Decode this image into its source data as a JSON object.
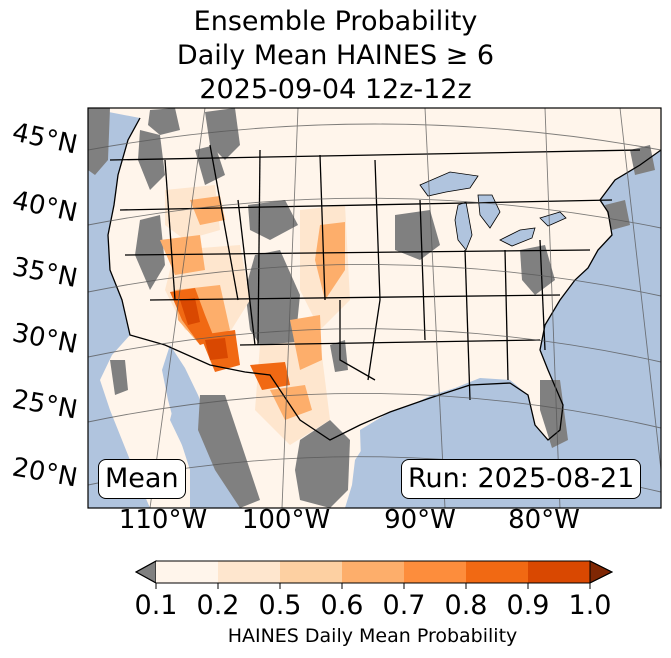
{
  "title": {
    "line1": "Ensemble Probability",
    "line2": "Daily Mean HAINES ≥ 6",
    "line3": "2025-09-04 12z-12z"
  },
  "map": {
    "latitude_labels": [
      "45°N",
      "40°N",
      "35°N",
      "30°N",
      "25°N",
      "20°N"
    ],
    "longitude_labels": [
      "110°W",
      "100°W",
      "90°W",
      "80°W"
    ],
    "statistic_label": "Mean",
    "run_label": "Run: 2025-08-21",
    "colors": {
      "ocean": "#b0c4de",
      "no_data": "#808080",
      "low_prob": "#fff5eb"
    }
  },
  "colorbar": {
    "label": "HAINES Daily Mean Probability",
    "ticks": [
      "0.1",
      "0.2",
      "0.5",
      "0.6",
      "0.7",
      "0.8",
      "0.9",
      "1.0"
    ],
    "under_color": "#808080",
    "over_color": "#7f2704",
    "colors": [
      "#fff5eb",
      "#fee6ce",
      "#fdd0a2",
      "#fdae6b",
      "#fd8d3c",
      "#f16913",
      "#d94801"
    ]
  }
}
